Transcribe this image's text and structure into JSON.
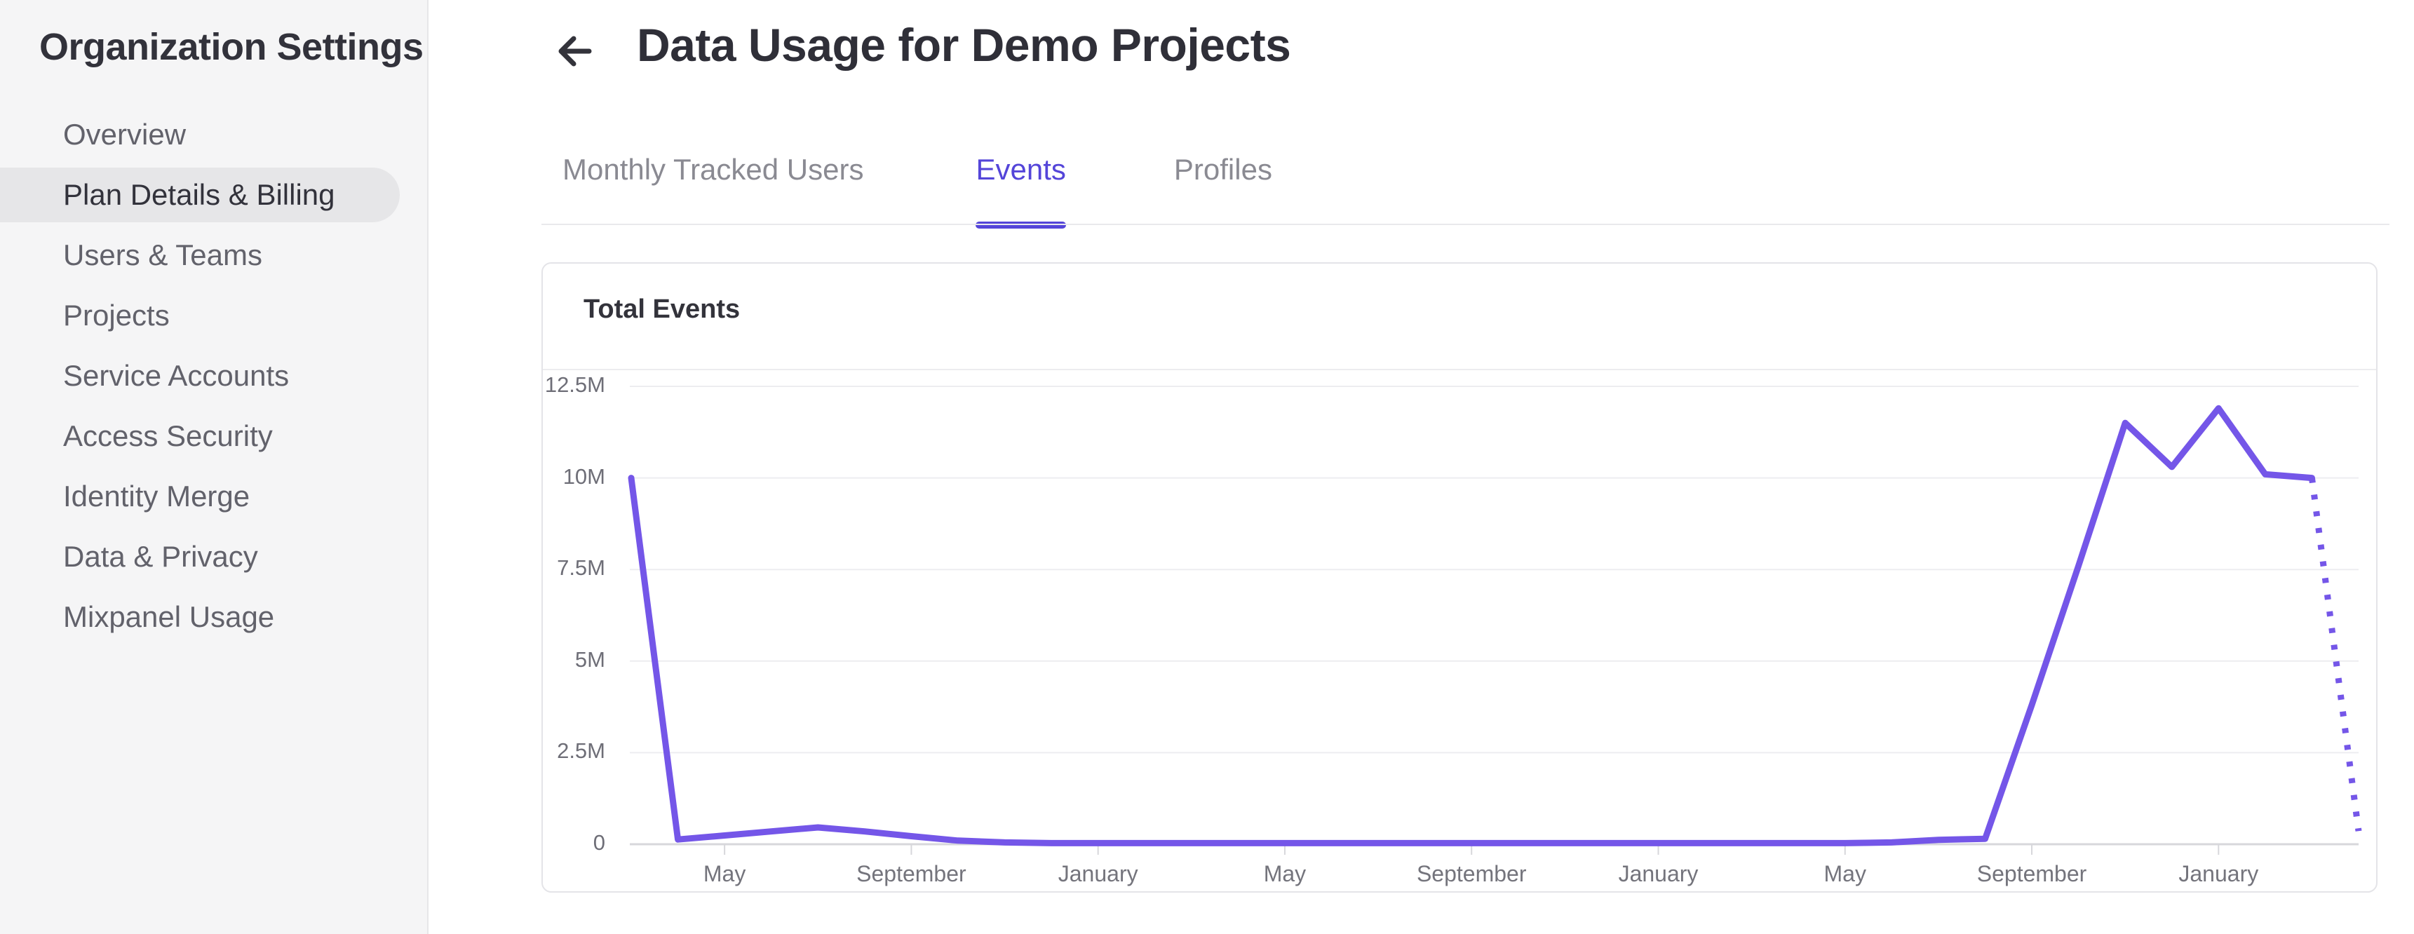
{
  "colors": {
    "accent_tab": "#5445d9",
    "line": "#7456e8",
    "gridline": "#ededf0",
    "axis_line": "#d7d7db",
    "tick": "#d7d7db"
  },
  "sidebar": {
    "title": "Organization Settings",
    "items": [
      {
        "label": "Overview",
        "active": false
      },
      {
        "label": "Plan Details & Billing",
        "active": true
      },
      {
        "label": "Users & Teams",
        "active": false
      },
      {
        "label": "Projects",
        "active": false
      },
      {
        "label": "Service Accounts",
        "active": false
      },
      {
        "label": "Access Security",
        "active": false
      },
      {
        "label": "Identity Merge",
        "active": false
      },
      {
        "label": "Data & Privacy",
        "active": false
      },
      {
        "label": "Mixpanel Usage",
        "active": false
      }
    ]
  },
  "header": {
    "back_icon": "left-arrow",
    "title": "Data Usage for Demo Projects"
  },
  "tabs": [
    {
      "label": "Monthly Tracked Users",
      "active": false
    },
    {
      "label": "Events",
      "active": true
    },
    {
      "label": "Profiles",
      "active": false
    }
  ],
  "card": {
    "title": "Total Events"
  },
  "chart_data": {
    "type": "line",
    "title": "Total Events",
    "xlabel": "",
    "ylabel": "",
    "unit": "events",
    "ylim": [
      0,
      12500000
    ],
    "grid": "horizontal",
    "legend": "none",
    "y_ticks": [
      {
        "label": "0",
        "value": 0
      },
      {
        "label": "2.5M",
        "value": 2500000
      },
      {
        "label": "5M",
        "value": 5000000
      },
      {
        "label": "7.5M",
        "value": 7500000
      },
      {
        "label": "10M",
        "value": 10000000
      },
      {
        "label": "12.5M",
        "value": 12500000
      }
    ],
    "x_ticks": [
      {
        "label": "May",
        "month_index": 2
      },
      {
        "label": "September",
        "month_index": 6
      },
      {
        "label": "January",
        "month_index": 10
      },
      {
        "label": "May",
        "month_index": 14
      },
      {
        "label": "September",
        "month_index": 18
      },
      {
        "label": "January",
        "month_index": 22
      },
      {
        "label": "May",
        "month_index": 26
      },
      {
        "label": "September",
        "month_index": 30
      },
      {
        "label": "January",
        "month_index": 34
      }
    ],
    "series": [
      {
        "name": "Total Events",
        "note": "monthly values in events; indices 0..36 drawn solid, final point dashed projection",
        "values_solid": [
          10000000,
          130000,
          240000,
          350000,
          460000,
          350000,
          220000,
          100000,
          50000,
          30000,
          30000,
          30000,
          30000,
          30000,
          30000,
          30000,
          30000,
          30000,
          30000,
          30000,
          30000,
          30000,
          30000,
          30000,
          30000,
          30000,
          30000,
          50000,
          120000,
          150000,
          3800000,
          7600000,
          11500000,
          10300000,
          11900000,
          10100000,
          10000000
        ],
        "value_projected_dotted": 360000
      }
    ]
  }
}
